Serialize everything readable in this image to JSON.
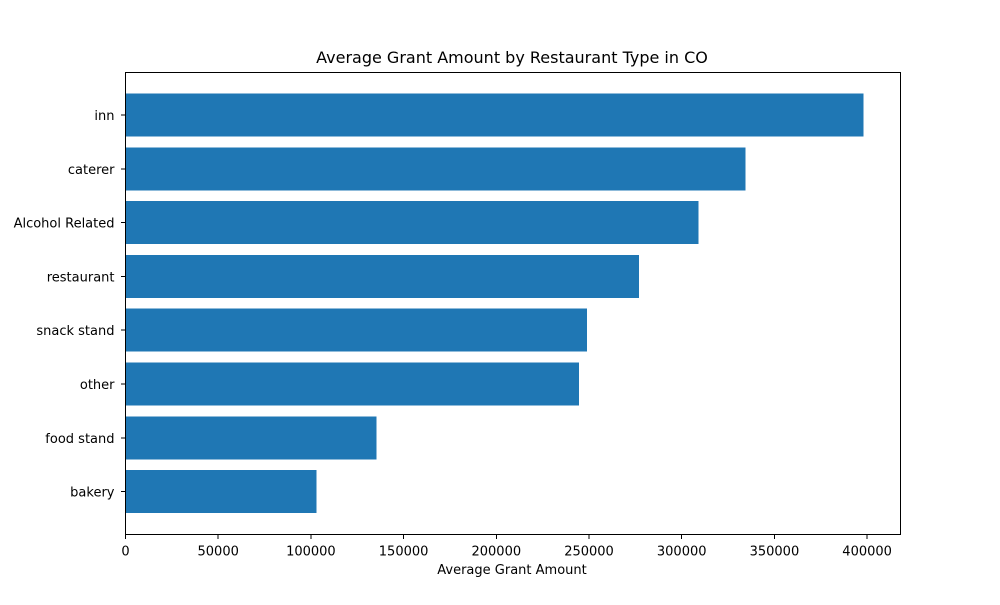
{
  "chart_data": {
    "type": "bar",
    "orientation": "horizontal",
    "title": "Average Grant Amount by Restaurant Type in CO",
    "xlabel": "Average Grant Amount",
    "ylabel": "",
    "categories": [
      "inn",
      "caterer",
      "Alcohol Related",
      "restaurant",
      "snack stand",
      "other",
      "food stand",
      "bakery"
    ],
    "values": [
      398000,
      334500,
      309000,
      277000,
      249000,
      244500,
      135500,
      103000
    ],
    "xlim": [
      0,
      418000
    ],
    "xticks": [
      0,
      50000,
      100000,
      150000,
      200000,
      250000,
      300000,
      350000,
      400000
    ],
    "xtick_labels": [
      "0",
      "50000",
      "100000",
      "150000",
      "200000",
      "250000",
      "300000",
      "350000",
      "400000"
    ],
    "grid": false,
    "colors": {
      "bar": "#1f77b4"
    }
  }
}
